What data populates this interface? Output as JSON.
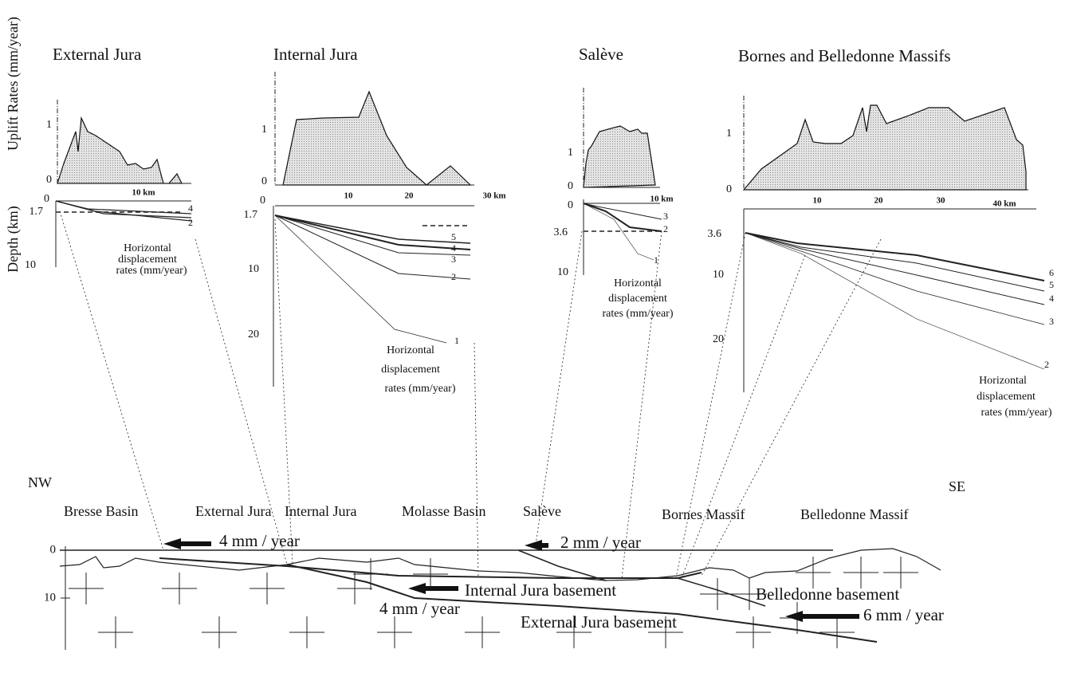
{
  "axis_labels": {
    "uplift": "Uplift Rates (mm/year)",
    "depth": "Depth (km)"
  },
  "panels": [
    {
      "title": "External Jura",
      "uplift_ticks": [
        1,
        0
      ],
      "distance_ticks": [
        "10 km"
      ],
      "depth_ticks": [
        0,
        1.7,
        10
      ],
      "curve_labels": [
        4,
        2
      ],
      "caption": [
        "Horizontal",
        "displacement",
        "rates (mm/year)"
      ]
    },
    {
      "title": "Internal Jura",
      "uplift_ticks": [
        1,
        0
      ],
      "distance_ticks": [
        10,
        20,
        "30 km"
      ],
      "depth_ticks": [
        0,
        1.7,
        10,
        20
      ],
      "curve_labels": [
        5,
        4,
        3,
        2,
        1
      ],
      "caption": [
        "Horizontal",
        "displacement",
        "rates (mm/year)"
      ]
    },
    {
      "title": "Salève",
      "uplift_ticks": [
        1,
        0
      ],
      "distance_ticks": [
        "10 km"
      ],
      "depth_ticks": [
        0,
        3.6,
        10
      ],
      "curve_labels": [
        3,
        2,
        1
      ],
      "caption": [
        "Horizontal",
        "displacement",
        "rates (mm/year)"
      ]
    },
    {
      "title": "Bornes and Belledonne Massifs",
      "uplift_ticks": [
        1,
        0
      ],
      "distance_ticks": [
        10,
        20,
        30,
        "40 km"
      ],
      "depth_ticks": [
        3.6,
        10,
        20
      ],
      "curve_labels": [
        6,
        5,
        4,
        3,
        2
      ],
      "caption": [
        "Horizontal",
        "displacement",
        "rates (mm/year)"
      ]
    }
  ],
  "section": {
    "directions": [
      "NW",
      "SE"
    ],
    "regions": [
      "Bresse Basin",
      "External Jura",
      "Internal Jura",
      "Molasse Basin",
      "Salève",
      "Bornes Massif",
      "Belledonne Massif"
    ],
    "depth_ticks": [
      0,
      10
    ],
    "rates": [
      "4 mm / year",
      "2 mm / year",
      "4 mm / year",
      "6 mm / year"
    ],
    "units": [
      "Internal Jura basement",
      "Belledonne basement",
      "External Jura basement"
    ]
  }
}
